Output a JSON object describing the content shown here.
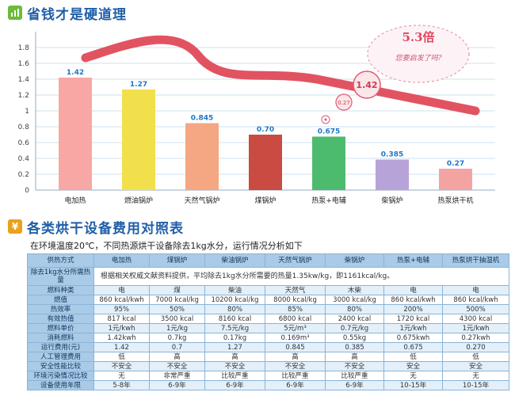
{
  "section1": {
    "icon": "bar-chart-icon",
    "title": "省钱才是硬道理"
  },
  "section2": {
    "icon": "yen-icon",
    "icon_glyph": "¥",
    "title": "各类烘干设备费用对照表"
  },
  "chart_data": {
    "type": "bar",
    "categories": [
      "电加热",
      "燃油锅炉",
      "天然气锅炉",
      "煤锅炉",
      "热泵+电辅",
      "柴锅炉",
      "热泵烘干机"
    ],
    "values": [
      1.42,
      1.27,
      0.845,
      0.7,
      0.675,
      0.385,
      0.27
    ],
    "value_labels": [
      "1.42",
      "1.27",
      "0.845",
      "0.70",
      "0.675",
      "0.385",
      "0.27"
    ],
    "bar_colors": [
      "#f7a8a4",
      "#f1e04c",
      "#f4a782",
      "#c94b42",
      "#4dbb6e",
      "#b8a3d9",
      "#f4a3a3"
    ],
    "label_color": "#1f78c8",
    "ylim": [
      0,
      2.0
    ],
    "yticks": [
      0,
      0.2,
      0.4,
      0.6,
      0.8,
      1.0,
      1.2,
      1.4,
      1.6,
      1.8
    ],
    "ytick_labels": [
      "0",
      "0.2",
      "0.4",
      "0.6",
      "0.8",
      "1",
      "1.2",
      "1.4",
      "1.6",
      "1.8"
    ],
    "grid": true,
    "trend_color": "#e04a5a",
    "annotations": {
      "ratio": "5.3倍",
      "question": "您要启发了吗?",
      "high": "1.42",
      "low": "0.27"
    }
  },
  "table": {
    "intro": "在环境温度20℃，不同热源烘干设备除去1kg水分，运行情况分析如下",
    "headers": [
      "供热方式",
      "电加热",
      "煤锅炉",
      "柴油锅炉",
      "天然气锅炉",
      "柴锅炉",
      "热泵+电辅",
      "热泵烘干抽湿机"
    ],
    "spec_row": {
      "label": "除去1kg水分所需热量",
      "text": "根据相关权威文献资料提供，平均除去1kg水分所需要的热量1.35kw/kg，即1161kcal/kg。"
    },
    "rows": [
      {
        "label": "燃料种类",
        "cells": [
          "电",
          "煤",
          "柴油",
          "天然气",
          "木柴",
          "电",
          "电"
        ]
      },
      {
        "label": "燃值",
        "cells": [
          "860 kcal/kwh",
          "7000 kcal/kg",
          "10200 kcal/kg",
          "8000 kcal/kg",
          "3000 kcal/kg",
          "860 kcal/kwh",
          "860 kcal/kwh"
        ]
      },
      {
        "label": "热效率",
        "cells": [
          "95%",
          "50%",
          "80%",
          "85%",
          "80%",
          "200%",
          "500%"
        ]
      },
      {
        "label": "有效热值",
        "cells": [
          "817 kcal",
          "3500 kcal",
          "8160 kcal",
          "6800 kcal",
          "2400 kcal",
          "1720 kcal",
          "4300 kcal"
        ]
      },
      {
        "label": "燃料单价",
        "cells": [
          "1元/kwh",
          "1元/kg",
          "7.5元/kg",
          "5元/m³",
          "0.7元/kg",
          "1元/kwh",
          "1元/kwh"
        ]
      },
      {
        "label": "消耗燃料",
        "cells": [
          "1.42kwh",
          "0.7kg",
          "0.17kg",
          "0.169m³",
          "0.55kg",
          "0.675kwh",
          "0.27kwh"
        ]
      },
      {
        "label": "运行费用(元)",
        "cells": [
          "1.42",
          "0.7",
          "1.27",
          "0.845",
          "0.385",
          "0.675",
          "0.270"
        ]
      },
      {
        "label": "人工管理费用",
        "cells": [
          "低",
          "高",
          "高",
          "高",
          "高",
          "低",
          "低"
        ]
      },
      {
        "label": "安全性能比较",
        "cells": [
          "不安全",
          "不安全",
          "不安全",
          "不安全",
          "不安全",
          "安全",
          "安全"
        ]
      },
      {
        "label": "环境污染情况比较",
        "cells": [
          "无",
          "非常严重",
          "比较严重",
          "比较严重",
          "比较严重",
          "无",
          "无"
        ]
      },
      {
        "label": "设备使用年限",
        "cells": [
          "5-8年",
          "6-9年",
          "6-9年",
          "6-9年",
          "6-9年",
          "10-15年",
          "10-15年"
        ]
      }
    ]
  }
}
